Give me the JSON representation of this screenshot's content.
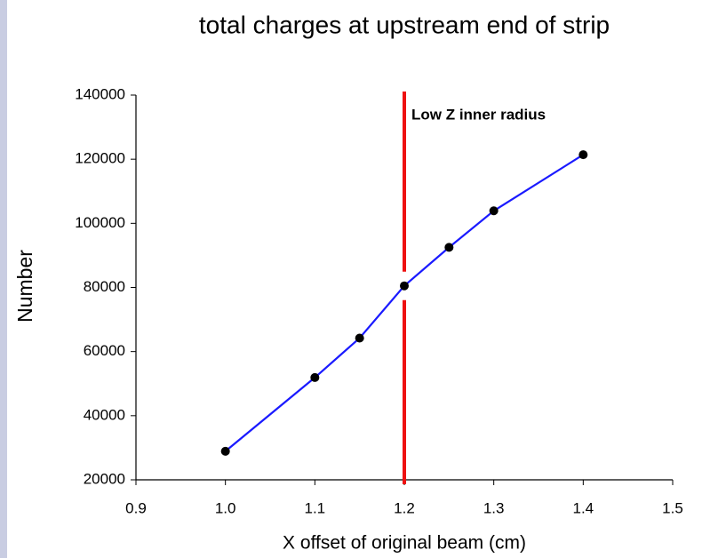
{
  "chart_data": {
    "type": "line",
    "title": "total charges at upstream end of strip",
    "xlabel": "X offset of original beam (cm)",
    "ylabel": "Number",
    "x": [
      1.0,
      1.1,
      1.15,
      1.2,
      1.25,
      1.3,
      1.4
    ],
    "series": [
      {
        "color": "#1a1aff",
        "marker_color": "#000000",
        "values": [
          28900,
          51900,
          64200,
          80500,
          92500,
          103900,
          121400
        ]
      }
    ],
    "xlim": [
      0.9,
      1.5
    ],
    "xticks": [
      0.9,
      {
        "value": 1.0,
        "label": "1.0"
      },
      1.1,
      1.2,
      1.3,
      1.4,
      1.5
    ],
    "ylim": [
      20000,
      140000
    ],
    "yticks": [
      20000,
      40000,
      60000,
      80000,
      100000,
      120000,
      140000
    ],
    "vline": {
      "x": 1.2,
      "color": "#ee1111",
      "label": "Low Z inner radius"
    }
  }
}
